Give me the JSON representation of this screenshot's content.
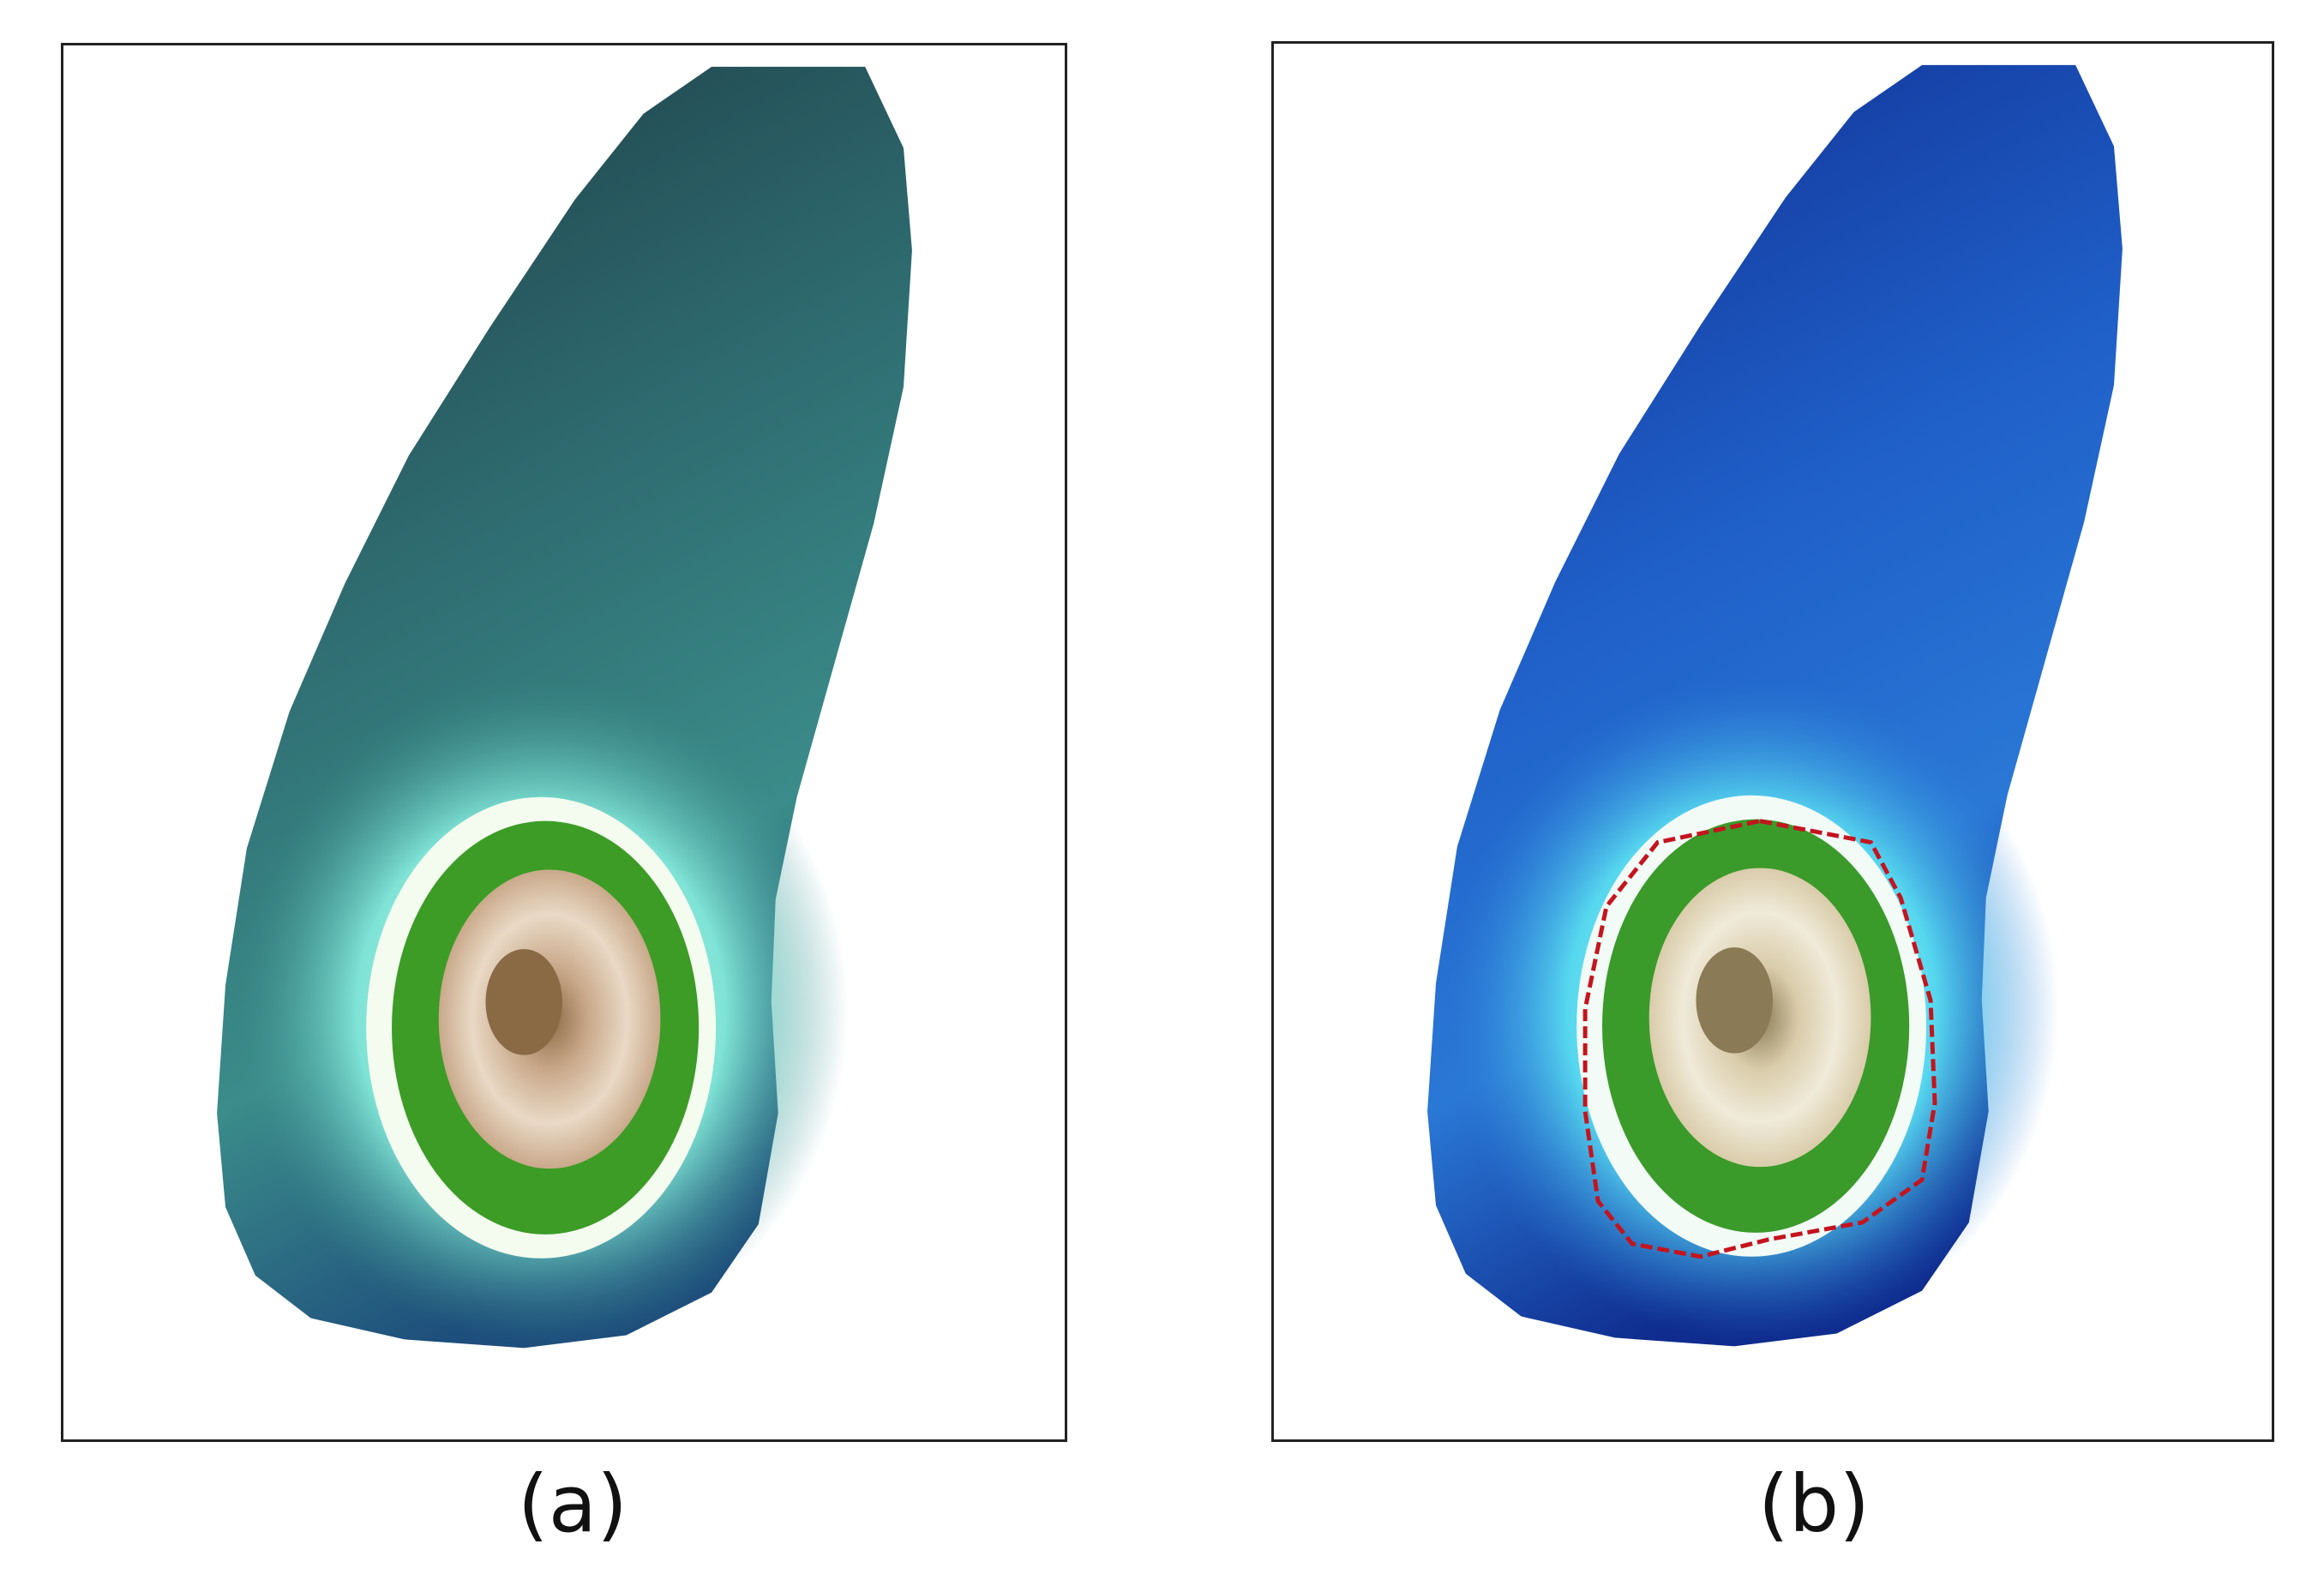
{
  "figure": {
    "panels": [
      {
        "id": "a",
        "caption": "(a)",
        "description_colors": {
          "deep_water": "#1d3b45",
          "mid_water": "#2f6e72",
          "shallow_water": "#7fe3d6",
          "beach": "#f4fbef",
          "vegetation": "#3c9c26",
          "sand_core": "#c9a98a",
          "center": "#8a6a45"
        }
      },
      {
        "id": "b",
        "caption": "(b)",
        "description_colors": {
          "deep_water": "#0f2c8e",
          "mid_water": "#1f5fc8",
          "shallow_water": "#57d8ef",
          "beach": "#f2fbf6",
          "vegetation": "#3a9a2a",
          "sand_core": "#d9ccaa",
          "center": "#8a7a55",
          "shoreline": "#c4141e"
        }
      }
    ]
  }
}
